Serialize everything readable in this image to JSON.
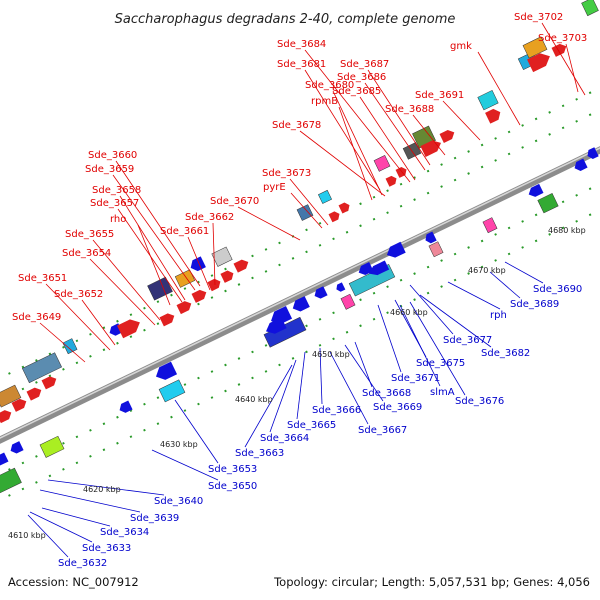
{
  "title": "Saccharophagus degradans 2-40, complete genome",
  "footer": {
    "accession": "Accession: NC_007912",
    "topology": "Topology: circular; Length: 5,057,531 bp; Genes: 4,056"
  },
  "colors": {
    "top_label": "#e00000",
    "bottom_label": "#0000cc",
    "backbone": "#8c8c8c"
  },
  "kbp_ticks": [
    "4610 kbp",
    "4620 kbp",
    "4630 kbp",
    "4640 kbp",
    "4650 kbp",
    "4660 kbp",
    "4670 kbp",
    "4680 kbp"
  ],
  "top_labels": [
    "Sde_3702",
    "Sde_3703",
    "Sde_3684",
    "gmk",
    "Sde_3681",
    "Sde_3687",
    "Sde_3686",
    "Sde_3680",
    "Sde_3685",
    "rpmB",
    "Sde_3688",
    "Sde_3691",
    "Sde_3678",
    "Sde_3660",
    "Sde_3659",
    "Sde_3673",
    "pyrE",
    "Sde_3658",
    "Sde_3670",
    "Sde_3657",
    "rho",
    "Sde_3662",
    "Sde_3661",
    "Sde_3655",
    "Sde_3654",
    "Sde_3651",
    "Sde_3652",
    "Sde_3649"
  ],
  "bottom_labels": [
    "Sde_3690",
    "Sde_3689",
    "rph",
    "Sde_3677",
    "Sde_3682",
    "Sde_3675",
    "Sde_3671",
    "slmA",
    "Sde_3676",
    "Sde_3668",
    "Sde_3669",
    "Sde_3666",
    "Sde_3667",
    "Sde_3665",
    "Sde_3664",
    "Sde_3663",
    "Sde_3653",
    "Sde_3650",
    "Sde_3640",
    "Sde_3639",
    "Sde_3634",
    "Sde_3633",
    "Sde_3632"
  ]
}
